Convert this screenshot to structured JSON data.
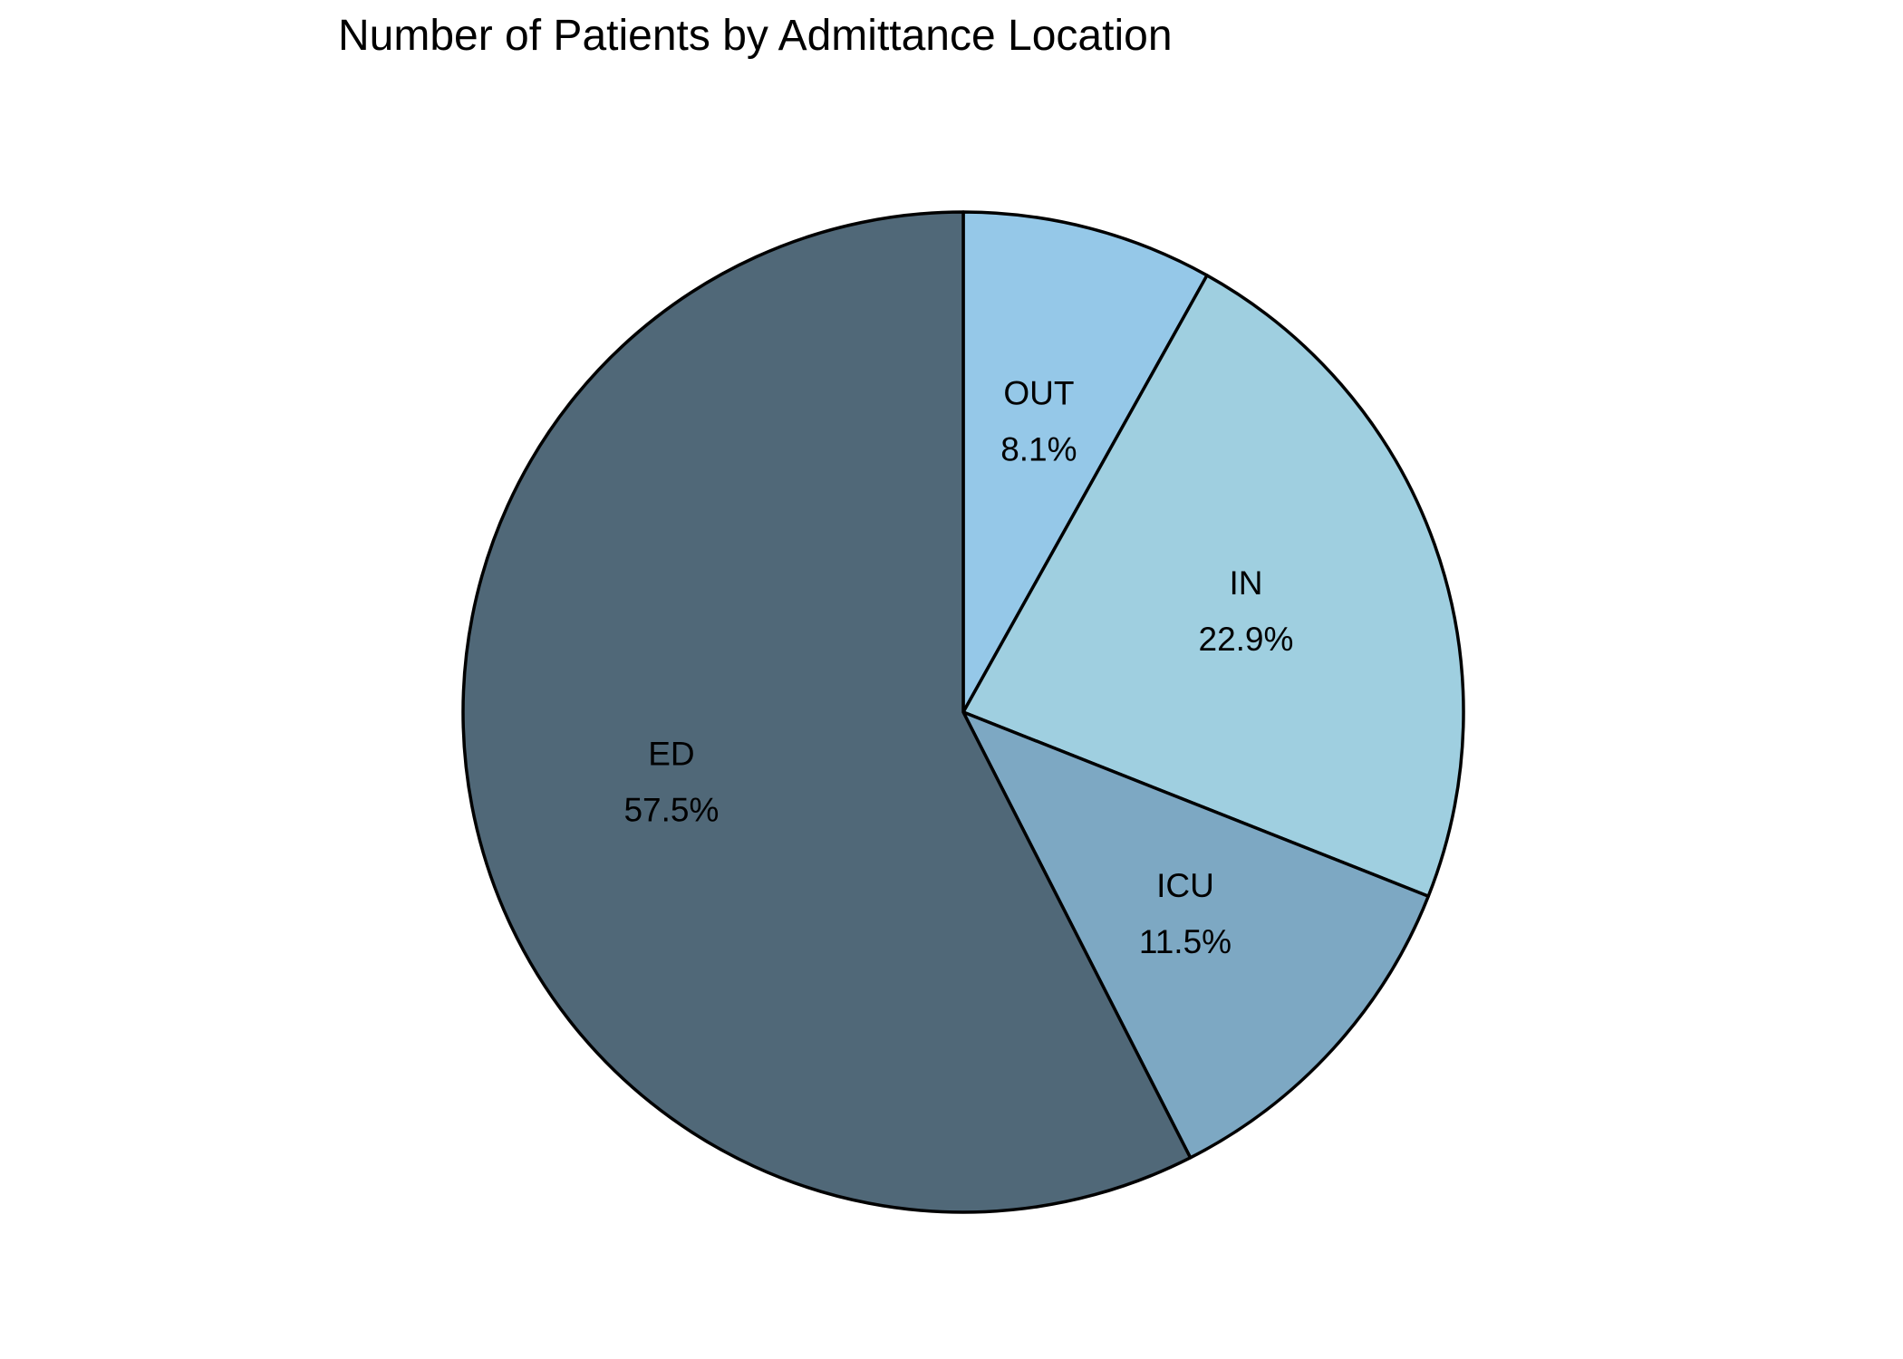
{
  "chart_data": {
    "type": "pie",
    "title": "Number of Patients by Admittance Location",
    "slices": [
      {
        "label": "OUT",
        "value": 8.1,
        "pct_label": "8.1%",
        "color": "#95C8E8"
      },
      {
        "label": "IN",
        "value": 22.9,
        "pct_label": "22.9%",
        "color": "#9FCFE0"
      },
      {
        "label": "ICU",
        "value": 11.5,
        "pct_label": "11.5%",
        "color": "#7DA8C3"
      },
      {
        "label": "ED",
        "value": 57.5,
        "pct_label": "57.5%",
        "color": "#506878"
      }
    ],
    "start_angle": "top",
    "direction": "clockwise",
    "edge_color": "#000000",
    "legend": "none"
  }
}
